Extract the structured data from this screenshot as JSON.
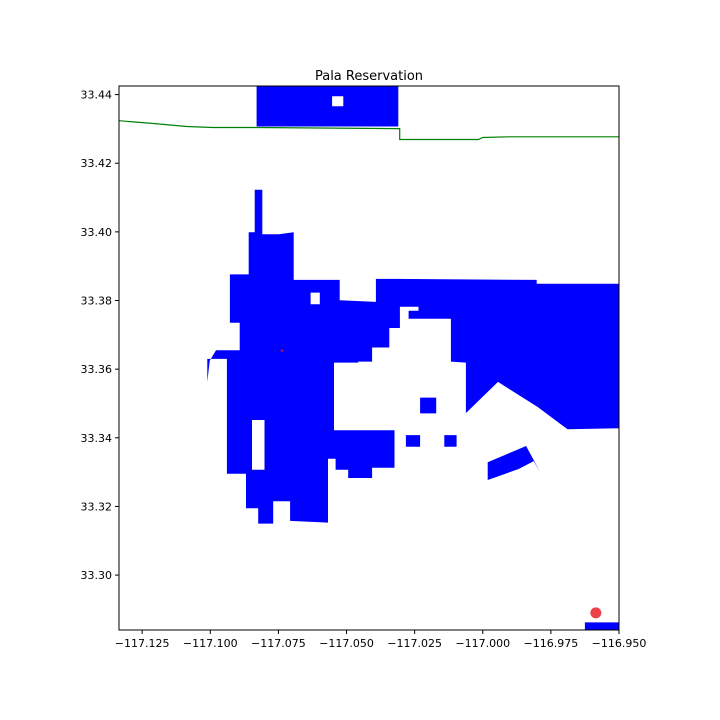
{
  "chart_data": {
    "type": "map",
    "title": "Pala Reservation",
    "xlim": [
      -117.1335,
      -116.95
    ],
    "ylim": [
      33.284,
      33.4425
    ],
    "x_ticks": [
      -117.125,
      -117.1,
      -117.075,
      -117.05,
      -117.025,
      -117.0,
      -116.975,
      -116.95
    ],
    "x_tick_labels": [
      "−117.125",
      "−117.100",
      "−117.075",
      "−117.050",
      "−117.025",
      "−117.000",
      "−116.975",
      "−116.950"
    ],
    "y_ticks": [
      33.3,
      33.32,
      33.34,
      33.36,
      33.38,
      33.4,
      33.42,
      33.44
    ],
    "y_tick_labels": [
      "33.30",
      "33.32",
      "33.34",
      "33.36",
      "33.38",
      "33.40",
      "33.42",
      "33.44"
    ],
    "colors": {
      "parcel_fill": "#0000ff",
      "boundary_line": "#008000",
      "marker": "#e8101a",
      "axes": "#000000"
    },
    "regions": [
      {
        "name": "top-parcel",
        "rings": [
          [
            [
              -117.083,
              33.4425
            ],
            [
              -117.031,
              33.4425
            ],
            [
              -117.031,
              33.4307
            ],
            [
              -117.083,
              33.4307
            ]
          ],
          [
            [
              -117.0553,
              33.4395
            ],
            [
              -117.0512,
              33.4395
            ],
            [
              -117.0512,
              33.4366
            ],
            [
              -117.0553,
              33.4366
            ]
          ]
        ]
      },
      {
        "name": "main-reservation",
        "rings": [
          [
            [
              -117.0837,
              33.4123
            ],
            [
              -117.0809,
              33.4123
            ],
            [
              -117.0809,
              33.3993
            ],
            [
              -117.0749,
              33.3993
            ],
            [
              -117.0694,
              33.3999
            ],
            [
              -117.0694,
              33.386
            ],
            [
              -117.0525,
              33.386
            ],
            [
              -117.0525,
              33.3801
            ],
            [
              -117.0392,
              33.3796
            ],
            [
              -117.0392,
              33.3863
            ],
            [
              -117.0323,
              33.3863
            ],
            [
              -116.9802,
              33.386
            ],
            [
              -116.9802,
              33.3849
            ],
            [
              -116.95,
              33.3849
            ],
            [
              -116.95,
              33.3428
            ],
            [
              -116.9689,
              33.3425
            ],
            [
              -116.9799,
              33.349
            ],
            [
              -116.9944,
              33.3563
            ],
            [
              -117.0062,
              33.3472
            ],
            [
              -117.0062,
              33.3619
            ],
            [
              -117.0117,
              33.3622
            ],
            [
              -117.0117,
              33.3747
            ],
            [
              -117.0236,
              33.3747
            ],
            [
              -117.0236,
              33.3782
            ],
            [
              -117.0304,
              33.3782
            ],
            [
              -117.0304,
              33.372
            ],
            [
              -117.0343,
              33.372
            ],
            [
              -117.0343,
              33.3663
            ],
            [
              -117.0406,
              33.3663
            ],
            [
              -117.0406,
              33.3622
            ],
            [
              -117.0457,
              33.3622
            ],
            [
              -117.0457,
              33.3619
            ],
            [
              -117.0546,
              33.3619
            ],
            [
              -117.0546,
              33.3422
            ],
            [
              -117.0324,
              33.3422
            ],
            [
              -117.0324,
              33.3313
            ],
            [
              -117.0406,
              33.3313
            ],
            [
              -117.0406,
              33.3283
            ],
            [
              -117.0494,
              33.3283
            ],
            [
              -117.0494,
              33.3307
            ],
            [
              -117.054,
              33.3307
            ],
            [
              -117.054,
              33.3339
            ],
            [
              -117.0568,
              33.3339
            ],
            [
              -117.0568,
              33.3228
            ],
            [
              -117.0568,
              33.3153
            ],
            [
              -117.0707,
              33.3158
            ],
            [
              -117.0707,
              33.3215
            ],
            [
              -117.0769,
              33.3215
            ],
            [
              -117.0769,
              33.315
            ],
            [
              -117.0824,
              33.315
            ],
            [
              -117.0824,
              33.3195
            ],
            [
              -117.0869,
              33.3195
            ],
            [
              -117.0869,
              33.3295
            ],
            [
              -117.0939,
              33.3295
            ],
            [
              -117.0939,
              33.363
            ],
            [
              -117.1011,
              33.363
            ],
            [
              -117.1011,
              33.3563
            ],
            [
              -117.1002,
              33.3624
            ],
            [
              -117.0979,
              33.3655
            ],
            [
              -117.0892,
              33.3655
            ],
            [
              -117.0892,
              33.3735
            ],
            [
              -117.0928,
              33.3735
            ],
            [
              -117.0928,
              33.3876
            ],
            [
              -117.0859,
              33.3876
            ],
            [
              -117.0859,
              33.3999
            ],
            [
              -117.0837,
              33.3999
            ]
          ],
          [
            [
              -117.0801,
              33.3452
            ],
            [
              -117.0801,
              33.3307
            ],
            [
              -117.0847,
              33.3307
            ],
            [
              -117.0847,
              33.3452
            ]
          ],
          [
            [
              -117.0632,
              33.3823
            ],
            [
              -117.0632,
              33.3789
            ],
            [
              -117.0598,
              33.3789
            ],
            [
              -117.0598,
              33.3823
            ]
          ],
          [
            [
              -117.0272,
              33.377
            ],
            [
              -117.0236,
              33.377
            ],
            [
              -117.0236,
              33.3747
            ],
            [
              -117.0272,
              33.3747
            ]
          ],
          [
            [
              -117.023,
              33.3517
            ],
            [
              -117.023,
              33.3471
            ],
            [
              -117.0171,
              33.3471
            ],
            [
              -117.0171,
              33.3517
            ]
          ],
          [
            [
              -117.0282,
              33.3408
            ],
            [
              -117.0282,
              33.3374
            ],
            [
              -117.023,
              33.3374
            ],
            [
              -117.023,
              33.3408
            ]
          ],
          [
            [
              -117.0141,
              33.3408
            ],
            [
              -117.0141,
              33.3374
            ],
            [
              -117.0096,
              33.3374
            ],
            [
              -117.0096,
              33.3408
            ]
          ]
        ]
      },
      {
        "name": "east-parcel",
        "rings": [
          [
            [
              -116.9868,
              33.3309
            ],
            [
              -116.9813,
              33.3332
            ],
            [
              -116.979,
              33.3301
            ],
            [
              -116.9841,
              33.3376
            ],
            [
              -116.9982,
              33.3329
            ],
            [
              -116.9982,
              33.3277
            ],
            [
              -116.9868,
              33.3309
            ]
          ]
        ]
      },
      {
        "name": "bottom-right-parcel",
        "rings": [
          [
            [
              -116.9625,
              33.2862
            ],
            [
              -116.95,
              33.2862
            ],
            [
              -116.95,
              33.284
            ],
            [
              -116.9625,
              33.284
            ]
          ]
        ]
      }
    ],
    "boundary_line": [
      [
        -117.1335,
        33.4324
      ],
      [
        -117.1214,
        33.4316
      ],
      [
        -117.1086,
        33.4307
      ],
      [
        -117.0991,
        33.4304
      ],
      [
        -117.0918,
        33.4304
      ],
      [
        -117.0831,
        33.4304
      ],
      [
        -117.0314,
        33.4301
      ],
      [
        -117.0305,
        33.4301
      ],
      [
        -117.0305,
        33.4269
      ],
      [
        -117.0016,
        33.4269
      ],
      [
        -117.0,
        33.4275
      ],
      [
        -116.9907,
        33.4277
      ],
      [
        -116.97,
        33.4277
      ],
      [
        -116.95,
        33.4277
      ]
    ],
    "markers": [
      {
        "name": "tiny-point-marker",
        "x": -117.0737,
        "y": 33.3654,
        "size": "tiny"
      },
      {
        "name": "location-marker",
        "x": -116.9585,
        "y": 33.289,
        "size": "large"
      }
    ]
  }
}
